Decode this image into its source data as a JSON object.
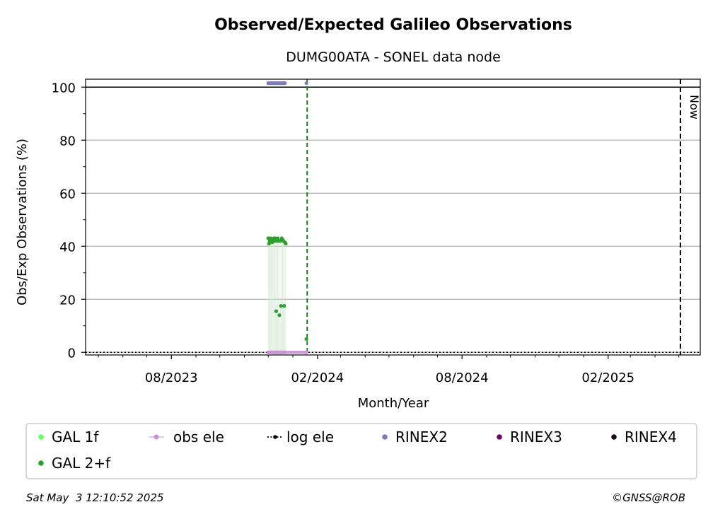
{
  "chart_data": {
    "type": "scatter",
    "title": "Observed/Expected Galileo Observations",
    "subtitle": "DUMG00ATA - SONEL data node",
    "xlabel": "Month/Year",
    "ylabel": "Obs/Exp Observations (%)",
    "x_type": "date",
    "xlim": [
      "2023-04-15",
      "2025-05-28"
    ],
    "ylim": [
      -1,
      103
    ],
    "x_ticks": [
      {
        "date": "2023-08-01",
        "label": "08/2023"
      },
      {
        "date": "2024-02-01",
        "label": "02/2024"
      },
      {
        "date": "2024-08-01",
        "label": "08/2024"
      },
      {
        "date": "2025-02-01",
        "label": "02/2025"
      }
    ],
    "x_minor_ticks": [
      "2023-05-01",
      "2023-06-01",
      "2023-07-01",
      "2023-09-01",
      "2023-10-01",
      "2023-11-01",
      "2023-12-01",
      "2024-01-01",
      "2024-03-01",
      "2024-04-01",
      "2024-05-01",
      "2024-06-01",
      "2024-07-01",
      "2024-09-01",
      "2024-10-01",
      "2024-11-01",
      "2024-12-01",
      "2025-01-01",
      "2025-03-01",
      "2025-04-01",
      "2025-05-01"
    ],
    "y_ticks": [
      0,
      20,
      40,
      60,
      80,
      100
    ],
    "grid": "horizontal",
    "reference_lines": {
      "hundred_percent": 100,
      "last_data_date": "2024-01-19",
      "now_date": "2025-05-03",
      "now_label": "Now"
    },
    "series": [
      {
        "name": "GAL 1f",
        "color": "#66ff66",
        "points": []
      },
      {
        "name": "GAL 2+f",
        "color": "#2ca02c",
        "points": [
          {
            "x": "2023-12-01",
            "y": 43
          },
          {
            "x": "2023-12-02",
            "y": 41
          },
          {
            "x": "2023-12-03",
            "y": 42
          },
          {
            "x": "2023-12-04",
            "y": 43
          },
          {
            "x": "2023-12-05",
            "y": 42
          },
          {
            "x": "2023-12-06",
            "y": 41.5
          },
          {
            "x": "2023-12-07",
            "y": 42.5
          },
          {
            "x": "2023-12-08",
            "y": 43
          },
          {
            "x": "2023-12-09",
            "y": 42
          },
          {
            "x": "2023-12-10",
            "y": 43
          },
          {
            "x": "2023-12-11",
            "y": 15.5
          },
          {
            "x": "2023-12-12",
            "y": 42
          },
          {
            "x": "2023-12-13",
            "y": 43
          },
          {
            "x": "2023-12-14",
            "y": 42
          },
          {
            "x": "2023-12-15",
            "y": 14
          },
          {
            "x": "2023-12-16",
            "y": 42
          },
          {
            "x": "2023-12-17",
            "y": 17.5
          },
          {
            "x": "2023-12-18",
            "y": 43
          },
          {
            "x": "2023-12-19",
            "y": 42.5
          },
          {
            "x": "2023-12-20",
            "y": 42
          },
          {
            "x": "2023-12-21",
            "y": 17.5
          },
          {
            "x": "2023-12-22",
            "y": 41.5
          },
          {
            "x": "2023-12-23",
            "y": 41
          },
          {
            "x": "2024-01-18",
            "y": 5
          }
        ]
      },
      {
        "name": "obs ele",
        "color": "#c792d3",
        "points": [
          {
            "x": "2023-12-01",
            "y": 0
          },
          {
            "x": "2023-12-04",
            "y": 0
          },
          {
            "x": "2023-12-07",
            "y": 0
          },
          {
            "x": "2023-12-10",
            "y": 0
          },
          {
            "x": "2023-12-13",
            "y": 0
          },
          {
            "x": "2023-12-16",
            "y": 0
          },
          {
            "x": "2023-12-19",
            "y": 0
          },
          {
            "x": "2023-12-22",
            "y": 0
          },
          {
            "x": "2024-01-18",
            "y": 0
          }
        ]
      },
      {
        "name": "log ele",
        "color": "#000000",
        "points": []
      },
      {
        "name": "RINEX2",
        "color": "#7b7bb7",
        "points": [
          {
            "x": "2023-12-01",
            "y": 101.5
          },
          {
            "x": "2023-12-04",
            "y": 101.5
          },
          {
            "x": "2023-12-07",
            "y": 101.5
          },
          {
            "x": "2023-12-10",
            "y": 101.5
          },
          {
            "x": "2023-12-13",
            "y": 101.5
          },
          {
            "x": "2023-12-16",
            "y": 101.5
          },
          {
            "x": "2023-12-19",
            "y": 101.5
          },
          {
            "x": "2023-12-22",
            "y": 101.5
          },
          {
            "x": "2024-01-18",
            "y": 101.5
          }
        ]
      },
      {
        "name": "RINEX3",
        "color": "#6b006b",
        "points": []
      },
      {
        "name": "RINEX4",
        "color": "#1a0a1a",
        "points": []
      }
    ],
    "legend": {
      "placement": "bottom",
      "rows": [
        [
          {
            "label": "GAL 1f",
            "marker": "dot",
            "color": "#66ff66"
          },
          {
            "label": "obs ele",
            "marker": "line-dot",
            "color": "#c792d3"
          },
          {
            "label": "log ele",
            "marker": "dotted-line-dot",
            "color": "#000000"
          },
          {
            "label": "RINEX2",
            "marker": "dot",
            "color": "#7b7bb7"
          },
          {
            "label": "RINEX3",
            "marker": "dot",
            "color": "#6b006b"
          },
          {
            "label": "RINEX4",
            "marker": "dot",
            "color": "#1a0a1a"
          }
        ],
        [
          {
            "label": "GAL 2+f",
            "marker": "dot",
            "color": "#2ca02c"
          }
        ]
      ]
    }
  },
  "footer": {
    "timestamp": "Sat May  3 12:10:52 2025",
    "credit": "©GNSS@ROB"
  }
}
